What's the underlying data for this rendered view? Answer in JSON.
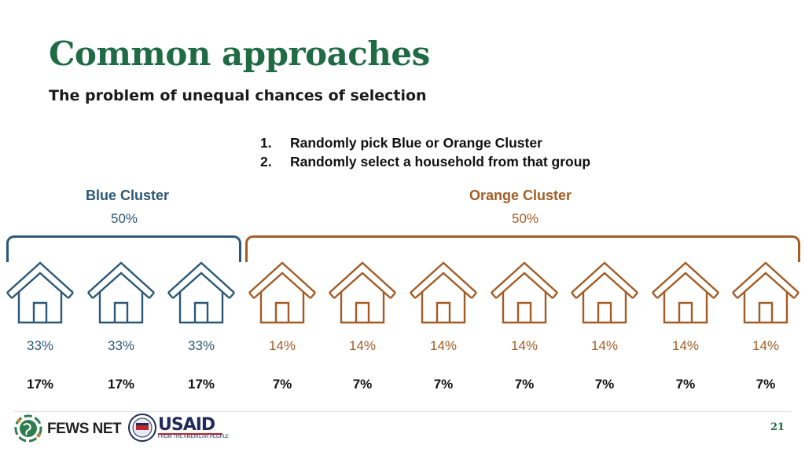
{
  "title": "Common approaches",
  "subtitle": "The problem of unequal chances of selection",
  "steps": [
    {
      "num": "1.",
      "text": "Randomly pick Blue or Orange Cluster"
    },
    {
      "num": "2.",
      "text": "Randomly select a household from that group"
    }
  ],
  "clusters": {
    "blue": {
      "name": "Blue Cluster",
      "pct": "50%",
      "color": "#2b5876"
    },
    "orange": {
      "name": "Orange Cluster",
      "pct": "50%",
      "color": "#a35c25"
    }
  },
  "houses": [
    {
      "cluster": "blue",
      "within_pct": "33%",
      "overall_pct": "17%"
    },
    {
      "cluster": "blue",
      "within_pct": "33%",
      "overall_pct": "17%"
    },
    {
      "cluster": "blue",
      "within_pct": "33%",
      "overall_pct": "17%"
    },
    {
      "cluster": "orange",
      "within_pct": "14%",
      "overall_pct": "7%"
    },
    {
      "cluster": "orange",
      "within_pct": "14%",
      "overall_pct": "7%"
    },
    {
      "cluster": "orange",
      "within_pct": "14%",
      "overall_pct": "7%"
    },
    {
      "cluster": "orange",
      "within_pct": "14%",
      "overall_pct": "7%"
    },
    {
      "cluster": "orange",
      "within_pct": "14%",
      "overall_pct": "7%"
    },
    {
      "cluster": "orange",
      "within_pct": "14%",
      "overall_pct": "7%"
    },
    {
      "cluster": "orange",
      "within_pct": "14%",
      "overall_pct": "7%"
    }
  ],
  "footer": {
    "fews_label": "FEWS NET",
    "usaid_label": "USAID",
    "usaid_tagline": "FROM THE AMERICAN PEOPLE",
    "page_number": "21",
    "fews_icon": "globe-icon",
    "usaid_icon": "seal-icon"
  }
}
